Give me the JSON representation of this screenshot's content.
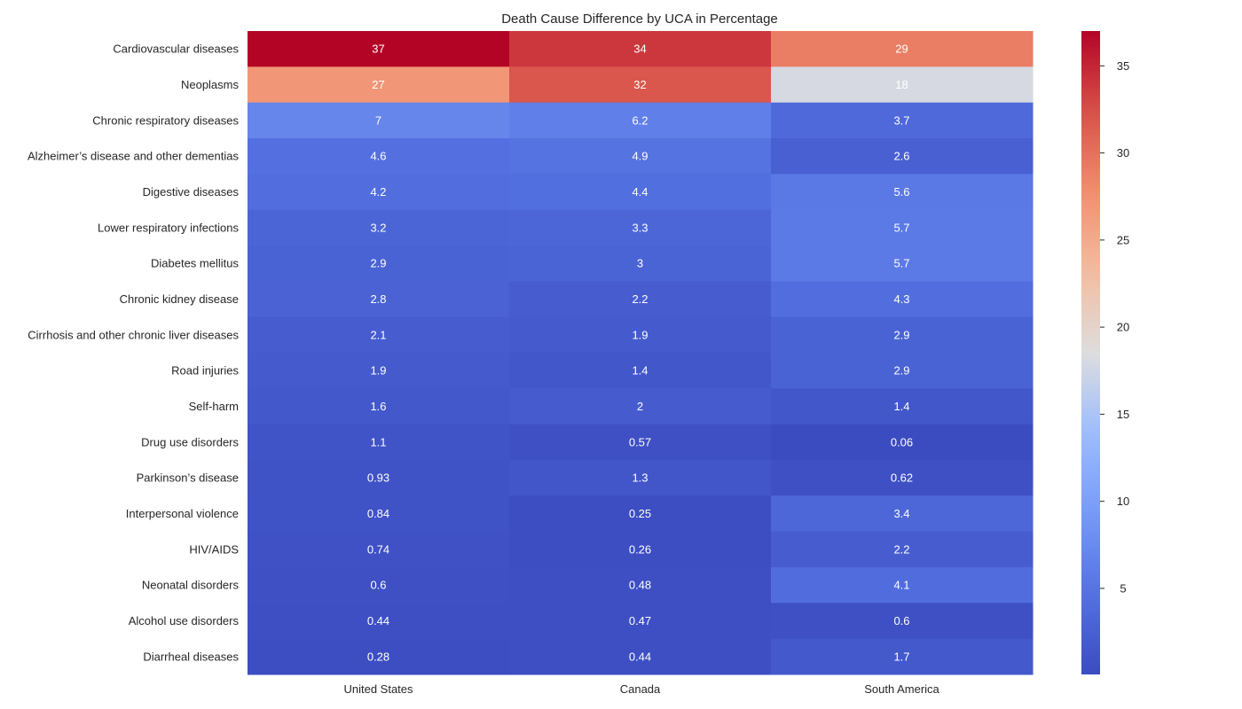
{
  "chart_data": {
    "type": "heatmap",
    "title": "Death Cause Difference by UCA in Percentage",
    "xlabel": "",
    "ylabel": "",
    "columns": [
      "United States",
      "Canada",
      "South America"
    ],
    "rows": [
      "Cardiovascular diseases",
      "Neoplasms",
      "Chronic respiratory diseases",
      "Alzheimer’s disease and other dementias",
      "Digestive diseases",
      "Lower respiratory infections",
      "Diabetes mellitus",
      "Chronic kidney disease",
      "Cirrhosis and other chronic liver diseases",
      "Road injuries",
      "Self-harm",
      "Drug use disorders",
      "Parkinson’s disease",
      "Interpersonal violence",
      "HIV/AIDS",
      "Neonatal disorders",
      "Alcohol use disorders",
      "Diarrheal diseases"
    ],
    "values": [
      [
        37,
        34,
        29
      ],
      [
        27,
        32,
        18
      ],
      [
        7,
        6.2,
        3.7
      ],
      [
        4.6,
        4.9,
        2.6
      ],
      [
        4.2,
        4.4,
        5.6
      ],
      [
        3.2,
        3.3,
        5.7
      ],
      [
        2.9,
        3,
        5.7
      ],
      [
        2.8,
        2.2,
        4.3
      ],
      [
        2.1,
        1.9,
        2.9
      ],
      [
        1.9,
        1.4,
        2.9
      ],
      [
        1.6,
        2,
        1.4
      ],
      [
        1.1,
        0.57,
        0.06
      ],
      [
        0.93,
        1.3,
        0.62
      ],
      [
        0.84,
        0.25,
        3.4
      ],
      [
        0.74,
        0.26,
        2.2
      ],
      [
        0.6,
        0.48,
        4.1
      ],
      [
        0.44,
        0.47,
        0.6
      ],
      [
        0.28,
        0.44,
        1.7
      ]
    ],
    "colorbar": {
      "colormap": "coolwarm",
      "min": 0.06,
      "max": 37,
      "ticks": [
        5,
        10,
        15,
        20,
        25,
        30,
        35
      ]
    },
    "grid": false
  }
}
